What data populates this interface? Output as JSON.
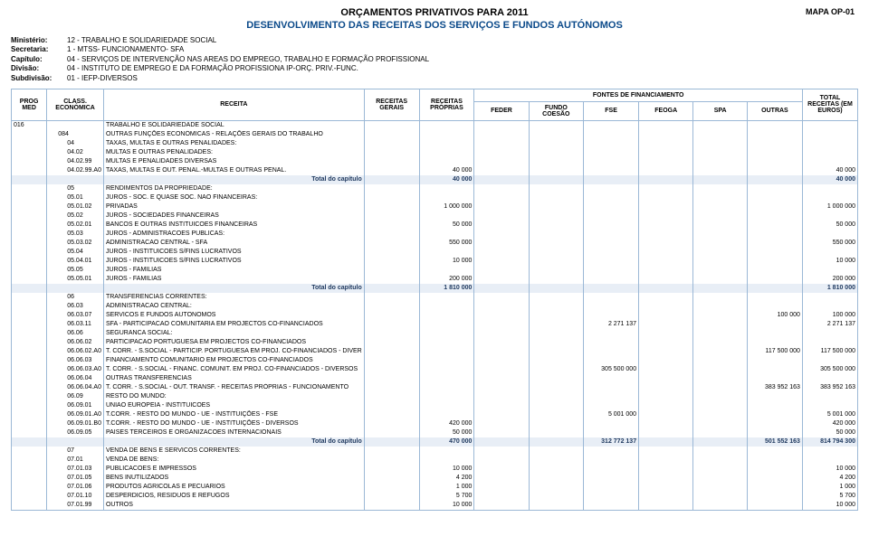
{
  "header": {
    "mapcode": "MAPA OP-01",
    "title1": "ORÇAMENTOS PRIVATIVOS PARA 2011",
    "title2": "DESENVOLVIMENTO DAS RECEITAS DOS SERVIÇOS E FUNDOS AUTÓNOMOS",
    "meta": [
      {
        "label": "Ministério:",
        "value": "12 - TRABALHO E SOLIDARIEDADE SOCIAL"
      },
      {
        "label": "Secretaria:",
        "value": "1 - MTSS- FUNCIONAMENTO- SFA"
      },
      {
        "label": "Capítulo:",
        "value": "04 - SERVIÇOS DE INTERVENÇÃO NAS AREAS DO EMPREGO, TRABALHO E FORMAÇÃO PROFISSIONAL"
      },
      {
        "label": "Divisão:",
        "value": "04 - INSTITUTO DE EMPREGO E DA FORMAÇÃO PROFISSIONA IP-ORÇ. PRIV.-FUNC."
      },
      {
        "label": "Subdivisão:",
        "value": "01 - IEFP-DIVERSOS"
      }
    ]
  },
  "columns": {
    "prog_med": "PROG MED",
    "class_econ": "CLASS. ECONÓMICA",
    "receita": "RECEITA",
    "rec_gerais": "RECEITAS GERAIS",
    "rec_proprias": "RECEITAS PRÓPRIAS",
    "feder": "FEDER",
    "fundo_coesao": "FUNDO COESÃO",
    "fse": "FSE",
    "feoga": "FEOGA",
    "spa": "SPA",
    "outras": "OUTRAS",
    "fontes": "FONTES DE FINANCIAMENTO",
    "total": "TOTAL RECEITAS (EM EUROS)"
  },
  "rows": [
    {
      "prog": "016",
      "code": "",
      "desc": "TRABALHO E SOLIDARIEDADE SOCIAL"
    },
    {
      "prog": "",
      "code": "084",
      "desc": "OUTRAS FUNÇÕES ECONÓMICAS - RELAÇÕES GERAIS DO TRABALHO",
      "indent": 1
    },
    {
      "code": "04",
      "desc": "TAXAS, MULTAS E OUTRAS PENALIDADES:",
      "indent": 2
    },
    {
      "code": "04.02",
      "desc": "MULTAS E OUTRAS PENALIDADES:",
      "indent": 2
    },
    {
      "code": "04.02.99",
      "desc": "MULTAS E PENALIDADES DIVERSAS",
      "indent": 2
    },
    {
      "code": "04.02.99.A0",
      "desc": "TAXAS, MULTAS E OUT. PENAL.-MULTAS E OUTRAS PENAL.",
      "indent": 2,
      "rec_proprias": "40 000",
      "total": "40 000"
    },
    {
      "subtotal": true,
      "desc": "Total do capítulo",
      "rec_proprias": "40 000",
      "total": "40 000"
    },
    {
      "code": "05",
      "desc": "RENDIMENTOS DA PROPRIEDADE:",
      "indent": 2
    },
    {
      "code": "05.01",
      "desc": "JUROS - SOC. E QUASE SOC. NAO FINANCEIRAS:",
      "indent": 2
    },
    {
      "code": "05.01.02",
      "desc": "PRIVADAS",
      "indent": 2,
      "rec_proprias": "1 000 000",
      "total": "1 000 000"
    },
    {
      "code": "05.02",
      "desc": "JUROS - SOCIEDADES FINANCEIRAS",
      "indent": 2
    },
    {
      "code": "05.02.01",
      "desc": "BANCOS E OUTRAS INSTITUICOES FINANCEIRAS",
      "indent": 2,
      "rec_proprias": "50 000",
      "total": "50 000"
    },
    {
      "code": "05.03",
      "desc": "JUROS - ADMINISTRACOES PUBLICAS:",
      "indent": 2
    },
    {
      "code": "05.03.02",
      "desc": "ADMINISTRACAO CENTRAL - SFA",
      "indent": 2,
      "rec_proprias": "550 000",
      "total": "550 000"
    },
    {
      "code": "05.04",
      "desc": "JUROS - INSTITUICOES S/FINS LUCRATIVOS",
      "indent": 2
    },
    {
      "code": "05.04.01",
      "desc": "JUROS - INSTITUICOES S/FINS LUCRATIVOS",
      "indent": 2,
      "rec_proprias": "10 000",
      "total": "10 000"
    },
    {
      "code": "05.05",
      "desc": "JUROS - FAMILIAS",
      "indent": 2
    },
    {
      "code": "05.05.01",
      "desc": "JUROS - FAMILIAS",
      "indent": 2,
      "rec_proprias": "200 000",
      "total": "200 000"
    },
    {
      "subtotal": true,
      "desc": "Total do capítulo",
      "rec_proprias": "1 810 000",
      "total": "1 810 000"
    },
    {
      "code": "06",
      "desc": "TRANSFERENCIAS CORRENTES:",
      "indent": 2
    },
    {
      "code": "06.03",
      "desc": "ADMINISTRACAO CENTRAL:",
      "indent": 2
    },
    {
      "code": "06.03.07",
      "desc": "SERVICOS E FUNDOS AUTONOMOS",
      "indent": 2,
      "outras": "100 000",
      "total": "100 000"
    },
    {
      "code": "06.03.11",
      "desc": "SFA - PARTICIPACAO COMUNITARIA EM PROJECTOS CO-FINANCIADOS",
      "indent": 2,
      "fse": "2 271 137",
      "total": "2 271 137"
    },
    {
      "code": "06.06",
      "desc": "SEGURANCA SOCIAL:",
      "indent": 2
    },
    {
      "code": "06.06.02",
      "desc": "PARTICIPACAO PORTUGUESA EM PROJECTOS CO-FINANCIADOS",
      "indent": 2
    },
    {
      "code": "06.06.02.A0",
      "desc": "T. CORR. - S.SOCIAL - PARTICIP. PORTUGUESA EM PROJ. CO-FINANCIADOS - DIVER",
      "indent": 2,
      "outras": "117 500 000",
      "total": "117 500 000"
    },
    {
      "code": "06.06.03",
      "desc": "FINANCIAMENTO COMUNITARIO EM PROJECTOS CO-FINANCIADOS",
      "indent": 2
    },
    {
      "code": "06.06.03.A0",
      "desc": "T. CORR. - S.SOCIAL - FINANC. COMUNIT. EM PROJ. CO-FINANCIADOS - DIVERSOS",
      "indent": 2,
      "fse": "305 500 000",
      "total": "305 500 000"
    },
    {
      "code": "06.06.04",
      "desc": "OUTRAS TRANSFERENCIAS",
      "indent": 2
    },
    {
      "code": "06.06.04.A0",
      "desc": "T. CORR. - S.SOCIAL - OUT. TRANSF. - RECEITAS PRÓPRIAS - FUNCIONAMENTO",
      "indent": 2,
      "outras": "383 952 163",
      "total": "383 952 163"
    },
    {
      "code": "06.09",
      "desc": "RESTO DO MUNDO:",
      "indent": 2
    },
    {
      "code": "06.09.01",
      "desc": "UNIAO EUROPEIA - INSTITUICOES",
      "indent": 2
    },
    {
      "code": "06.09.01.A0",
      "desc": "T.CORR. - RESTO DO MUNDO - UE - INSTITUIÇÕES - FSE",
      "indent": 2,
      "fse": "5 001 000",
      "total": "5 001 000"
    },
    {
      "code": "06.09.01.B0",
      "desc": "T.CORR. - RESTO DO MUNDO - UE - INSTITUIÇÕES - DIVERSOS",
      "indent": 2,
      "rec_proprias": "420 000",
      "total": "420 000"
    },
    {
      "code": "06.09.05",
      "desc": "PAISES TERCEIROS E ORGANIZACOES INTERNACIONAIS",
      "indent": 2,
      "rec_proprias": "50 000",
      "total": "50 000"
    },
    {
      "subtotal": true,
      "desc": "Total do capítulo",
      "rec_proprias": "470 000",
      "fse": "312 772 137",
      "outras": "501 552 163",
      "total": "814 794 300"
    },
    {
      "code": "07",
      "desc": "VENDA DE BENS E SERVICOS CORRENTES:",
      "indent": 2
    },
    {
      "code": "07.01",
      "desc": "VENDA DE BENS:",
      "indent": 2
    },
    {
      "code": "07.01.03",
      "desc": "PUBLICACOES E IMPRESSOS",
      "indent": 2,
      "rec_proprias": "10 000",
      "total": "10 000"
    },
    {
      "code": "07.01.05",
      "desc": "BENS INUTILIZADOS",
      "indent": 2,
      "rec_proprias": "4 200",
      "total": "4 200"
    },
    {
      "code": "07.01.06",
      "desc": "PRODUTOS AGRICOLAS E PECUARIOS",
      "indent": 2,
      "rec_proprias": "1 000",
      "total": "1 000"
    },
    {
      "code": "07.01.10",
      "desc": "DESPERDICIOS, RESIDUOS E REFUGOS",
      "indent": 2,
      "rec_proprias": "5 700",
      "total": "5 700"
    },
    {
      "code": "07.01.99",
      "desc": "OUTROS",
      "indent": 2,
      "rec_proprias": "10 000",
      "total": "10 000"
    }
  ]
}
